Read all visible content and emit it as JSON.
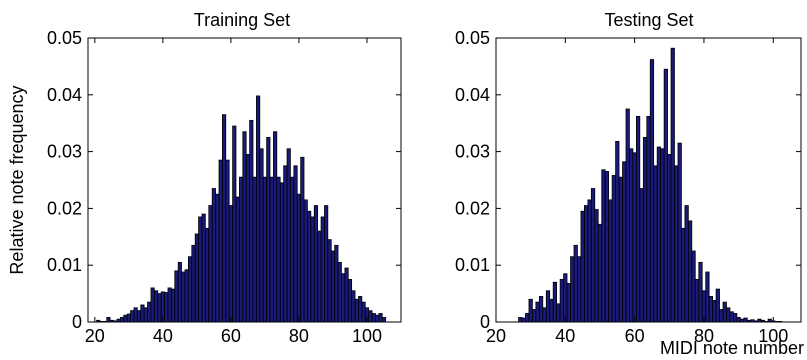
{
  "chart_data": [
    {
      "type": "bar",
      "title": "Training Set",
      "xlabel": "",
      "ylabel": "Relative note frequency",
      "xlim": [
        18,
        110
      ],
      "ylim": [
        0,
        0.05
      ],
      "xticks": [
        20,
        40,
        60,
        80,
        100
      ],
      "yticks": [
        0,
        0.01,
        0.02,
        0.03,
        0.04,
        0.05
      ],
      "x": [
        21,
        22,
        23,
        24,
        25,
        26,
        27,
        28,
        29,
        30,
        31,
        32,
        33,
        34,
        35,
        36,
        37,
        38,
        39,
        40,
        41,
        42,
        43,
        44,
        45,
        46,
        47,
        48,
        49,
        50,
        51,
        52,
        53,
        54,
        55,
        56,
        57,
        58,
        59,
        60,
        61,
        62,
        63,
        64,
        65,
        66,
        67,
        68,
        69,
        70,
        71,
        72,
        73,
        74,
        75,
        76,
        77,
        78,
        79,
        80,
        81,
        82,
        83,
        84,
        85,
        86,
        87,
        88,
        89,
        90,
        91,
        92,
        93,
        94,
        95,
        96,
        97,
        98,
        99,
        100,
        101,
        102,
        103,
        104,
        105
      ],
      "values": [
        0.0003,
        0.0001,
        0.0001,
        0.0008,
        0.0003,
        0.0002,
        0.0005,
        0.0008,
        0.0012,
        0.0014,
        0.002,
        0.0025,
        0.002,
        0.003,
        0.0025,
        0.0035,
        0.006,
        0.0055,
        0.005,
        0.0053,
        0.0052,
        0.006,
        0.0058,
        0.009,
        0.0105,
        0.0088,
        0.0092,
        0.0115,
        0.0135,
        0.0155,
        0.0185,
        0.019,
        0.0165,
        0.0205,
        0.0235,
        0.0225,
        0.0285,
        0.0365,
        0.0285,
        0.0205,
        0.0345,
        0.022,
        0.0255,
        0.0335,
        0.0295,
        0.0355,
        0.0255,
        0.0398,
        0.0305,
        0.0255,
        0.0325,
        0.0255,
        0.0335,
        0.0255,
        0.0245,
        0.0275,
        0.0305,
        0.0255,
        0.0275,
        0.0225,
        0.029,
        0.0215,
        0.0195,
        0.0185,
        0.0205,
        0.016,
        0.0185,
        0.0205,
        0.0145,
        0.0125,
        0.0135,
        0.0105,
        0.0085,
        0.0095,
        0.0075,
        0.0055,
        0.004,
        0.0045,
        0.0035,
        0.0025,
        0.002,
        0.0015,
        0.0012,
        0.0015,
        0.0008
      ]
    },
    {
      "type": "bar",
      "title": "Testing Set",
      "xlabel": "MIDI note number",
      "ylabel": "",
      "xlim": [
        20,
        108
      ],
      "ylim": [
        0,
        0.05
      ],
      "xticks": [
        20,
        40,
        60,
        80,
        100
      ],
      "yticks": [
        0,
        0.01,
        0.02,
        0.03,
        0.04,
        0.05
      ],
      "x": [
        27,
        28,
        29,
        30,
        31,
        32,
        33,
        34,
        35,
        36,
        37,
        38,
        39,
        40,
        41,
        42,
        43,
        44,
        45,
        46,
        47,
        48,
        49,
        50,
        51,
        52,
        53,
        54,
        55,
        56,
        57,
        58,
        59,
        60,
        61,
        62,
        63,
        64,
        65,
        66,
        67,
        68,
        69,
        70,
        71,
        72,
        73,
        74,
        75,
        76,
        77,
        78,
        79,
        80,
        81,
        82,
        83,
        84,
        85,
        86,
        87,
        88,
        89,
        90,
        91,
        92,
        93,
        94,
        95,
        96,
        97,
        98,
        99,
        100,
        101,
        102
      ],
      "values": [
        0.0008,
        0.0007,
        0.0015,
        0.004,
        0.0022,
        0.0035,
        0.0045,
        0.0025,
        0.0055,
        0.004,
        0.007,
        0.0032,
        0.0075,
        0.0085,
        0.0068,
        0.0115,
        0.0135,
        0.0115,
        0.0195,
        0.0205,
        0.0215,
        0.0235,
        0.0198,
        0.0172,
        0.0268,
        0.0265,
        0.0215,
        0.0258,
        0.0318,
        0.0255,
        0.0282,
        0.0375,
        0.0305,
        0.0298,
        0.0362,
        0.0235,
        0.0325,
        0.0362,
        0.0462,
        0.0275,
        0.0308,
        0.0305,
        0.0445,
        0.0295,
        0.0482,
        0.0275,
        0.0315,
        0.0165,
        0.0205,
        0.0178,
        0.0125,
        0.0075,
        0.0105,
        0.0055,
        0.0088,
        0.0045,
        0.0038,
        0.0058,
        0.0022,
        0.0035,
        0.0025,
        0.0018,
        0.0015,
        0.0008,
        0.0005,
        0.0007,
        0.0003,
        0.0004,
        0.0002,
        0.0005,
        0.0003,
        0.0001,
        0.0005,
        0.0002,
        0.0001,
        0.0001
      ]
    }
  ]
}
